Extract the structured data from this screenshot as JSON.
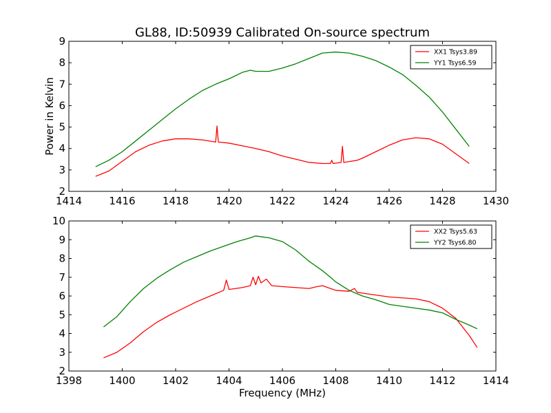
{
  "figure": {
    "title": "GL88, ID:50939 Calibrated On-source spectrum"
  },
  "chart_data": [
    {
      "type": "line",
      "title": "GL88, ID:50939 Calibrated On-source spectrum",
      "xlabel": "",
      "ylabel": "Power in Kelvin",
      "xlim": [
        1414,
        1430
      ],
      "ylim": [
        2,
        9
      ],
      "xticks": [
        "1414",
        "1416",
        "1418",
        "1420",
        "1422",
        "1424",
        "1426",
        "1428",
        "1430"
      ],
      "yticks": [
        "2",
        "3",
        "4",
        "5",
        "6",
        "7",
        "8",
        "9"
      ],
      "grid": false,
      "legend_position": "top-right",
      "series": [
        {
          "name": "XX1 Tsys3.89",
          "color": "#ff0000",
          "points": [
            [
              1415.0,
              2.7
            ],
            [
              1415.5,
              2.95
            ],
            [
              1416.0,
              3.4
            ],
            [
              1416.5,
              3.85
            ],
            [
              1417.0,
              4.15
            ],
            [
              1417.5,
              4.35
            ],
            [
              1418.0,
              4.45
            ],
            [
              1418.5,
              4.45
            ],
            [
              1419.0,
              4.4
            ],
            [
              1419.5,
              4.3
            ],
            [
              1419.55,
              5.05
            ],
            [
              1419.6,
              4.3
            ],
            [
              1420.0,
              4.25
            ],
            [
              1420.6,
              4.1
            ],
            [
              1421.0,
              4.0
            ],
            [
              1421.5,
              3.85
            ],
            [
              1422.0,
              3.65
            ],
            [
              1422.5,
              3.5
            ],
            [
              1423.0,
              3.35
            ],
            [
              1423.5,
              3.3
            ],
            [
              1423.8,
              3.3
            ],
            [
              1423.85,
              3.45
            ],
            [
              1423.9,
              3.3
            ],
            [
              1424.2,
              3.35
            ],
            [
              1424.25,
              4.1
            ],
            [
              1424.3,
              3.35
            ],
            [
              1424.8,
              3.45
            ],
            [
              1425.0,
              3.55
            ],
            [
              1425.5,
              3.85
            ],
            [
              1426.0,
              4.15
            ],
            [
              1426.5,
              4.4
            ],
            [
              1427.0,
              4.5
            ],
            [
              1427.5,
              4.45
            ],
            [
              1428.0,
              4.2
            ],
            [
              1428.5,
              3.75
            ],
            [
              1429.0,
              3.3
            ]
          ]
        },
        {
          "name": "YY1 Tsys6.59",
          "color": "#008000",
          "points": [
            [
              1415.0,
              3.15
            ],
            [
              1415.5,
              3.45
            ],
            [
              1416.0,
              3.85
            ],
            [
              1416.5,
              4.35
            ],
            [
              1417.0,
              4.85
            ],
            [
              1417.5,
              5.35
            ],
            [
              1418.0,
              5.85
            ],
            [
              1418.5,
              6.3
            ],
            [
              1419.0,
              6.7
            ],
            [
              1419.5,
              7.0
            ],
            [
              1420.0,
              7.25
            ],
            [
              1420.5,
              7.55
            ],
            [
              1420.8,
              7.65
            ],
            [
              1421.0,
              7.6
            ],
            [
              1421.5,
              7.6
            ],
            [
              1422.0,
              7.75
            ],
            [
              1422.5,
              7.95
            ],
            [
              1423.0,
              8.2
            ],
            [
              1423.5,
              8.45
            ],
            [
              1424.0,
              8.5
            ],
            [
              1424.5,
              8.45
            ],
            [
              1425.0,
              8.3
            ],
            [
              1425.5,
              8.1
            ],
            [
              1426.0,
              7.8
            ],
            [
              1426.5,
              7.45
            ],
            [
              1427.0,
              6.95
            ],
            [
              1427.5,
              6.4
            ],
            [
              1428.0,
              5.7
            ],
            [
              1428.5,
              4.9
            ],
            [
              1429.0,
              4.1
            ]
          ]
        }
      ]
    },
    {
      "type": "line",
      "title": "",
      "xlabel": "Frequency (MHz)",
      "ylabel": "",
      "xlim": [
        1398,
        1414
      ],
      "ylim": [
        2,
        10
      ],
      "xticks": [
        "1398",
        "1400",
        "1402",
        "1404",
        "1406",
        "1408",
        "1410",
        "1412",
        "1414"
      ],
      "yticks": [
        "2",
        "3",
        "4",
        "5",
        "6",
        "7",
        "8",
        "9",
        "10"
      ],
      "grid": false,
      "legend_position": "top-right",
      "series": [
        {
          "name": "XX2 Tsys5.63",
          "color": "#ff0000",
          "points": [
            [
              1399.3,
              2.7
            ],
            [
              1399.8,
              3.0
            ],
            [
              1400.3,
              3.5
            ],
            [
              1400.8,
              4.1
            ],
            [
              1401.3,
              4.6
            ],
            [
              1401.8,
              5.0
            ],
            [
              1402.3,
              5.35
            ],
            [
              1402.8,
              5.7
            ],
            [
              1403.3,
              6.0
            ],
            [
              1403.8,
              6.3
            ],
            [
              1403.9,
              6.85
            ],
            [
              1404.0,
              6.35
            ],
            [
              1404.5,
              6.45
            ],
            [
              1404.8,
              6.55
            ],
            [
              1404.9,
              7.0
            ],
            [
              1405.0,
              6.6
            ],
            [
              1405.1,
              7.05
            ],
            [
              1405.2,
              6.7
            ],
            [
              1405.4,
              6.9
            ],
            [
              1405.6,
              6.55
            ],
            [
              1406.0,
              6.5
            ],
            [
              1406.5,
              6.45
            ],
            [
              1407.0,
              6.4
            ],
            [
              1407.3,
              6.5
            ],
            [
              1407.5,
              6.55
            ],
            [
              1407.8,
              6.4
            ],
            [
              1408.0,
              6.3
            ],
            [
              1408.5,
              6.25
            ],
            [
              1408.7,
              6.4
            ],
            [
              1408.8,
              6.2
            ],
            [
              1409.0,
              6.15
            ],
            [
              1409.5,
              6.05
            ],
            [
              1410.0,
              5.95
            ],
            [
              1410.5,
              5.9
            ],
            [
              1411.0,
              5.85
            ],
            [
              1411.5,
              5.7
            ],
            [
              1412.0,
              5.35
            ],
            [
              1412.5,
              4.8
            ],
            [
              1413.0,
              3.9
            ],
            [
              1413.3,
              3.25
            ]
          ]
        },
        {
          "name": "YY2 Tsys6.80",
          "color": "#008000",
          "points": [
            [
              1399.3,
              4.35
            ],
            [
              1399.8,
              4.9
            ],
            [
              1400.3,
              5.7
            ],
            [
              1400.8,
              6.4
            ],
            [
              1401.3,
              6.95
            ],
            [
              1401.8,
              7.4
            ],
            [
              1402.3,
              7.8
            ],
            [
              1402.8,
              8.1
            ],
            [
              1403.3,
              8.4
            ],
            [
              1403.8,
              8.65
            ],
            [
              1404.3,
              8.9
            ],
            [
              1404.8,
              9.1
            ],
            [
              1405.0,
              9.2
            ],
            [
              1405.5,
              9.1
            ],
            [
              1406.0,
              8.9
            ],
            [
              1406.5,
              8.45
            ],
            [
              1407.0,
              7.85
            ],
            [
              1407.5,
              7.35
            ],
            [
              1407.8,
              7.0
            ],
            [
              1408.0,
              6.75
            ],
            [
              1408.5,
              6.3
            ],
            [
              1409.0,
              6.0
            ],
            [
              1409.5,
              5.8
            ],
            [
              1410.0,
              5.55
            ],
            [
              1410.5,
              5.45
            ],
            [
              1411.0,
              5.35
            ],
            [
              1411.5,
              5.25
            ],
            [
              1412.0,
              5.1
            ],
            [
              1412.5,
              4.75
            ],
            [
              1413.0,
              4.45
            ],
            [
              1413.3,
              4.25
            ]
          ]
        }
      ]
    }
  ]
}
